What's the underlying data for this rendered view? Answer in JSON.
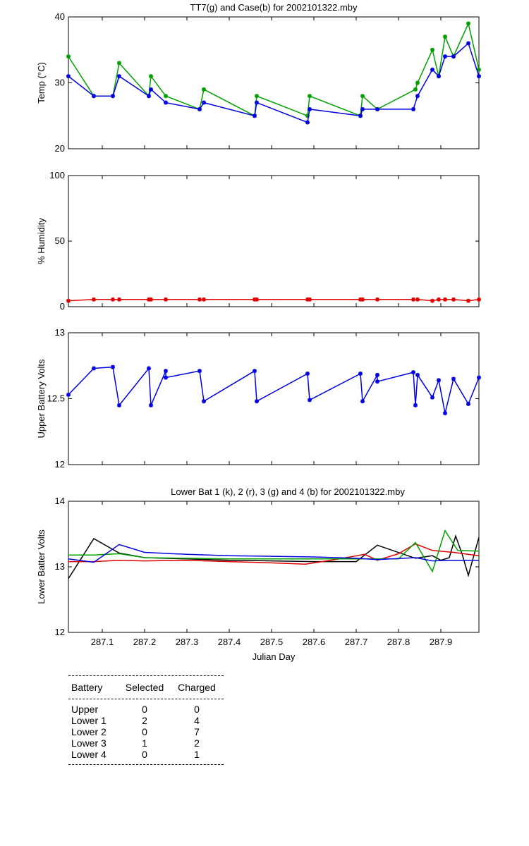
{
  "chart_data": [
    {
      "type": "line",
      "title": "TT7(g) and Case(b) for 2002101322.mby",
      "xlabel": "",
      "ylabel": "Temp  (°C)",
      "xlim": [
        287.02,
        287.99
      ],
      "ylim": [
        20,
        40
      ],
      "yticks": [
        "20",
        "30",
        "40"
      ],
      "series": [
        {
          "name": "TT7",
          "color": "#00a000",
          "x": [
            287.02,
            287.08,
            287.125,
            287.14,
            287.21,
            287.215,
            287.25,
            287.33,
            287.34,
            287.46,
            287.465,
            287.585,
            287.59,
            287.71,
            287.715,
            287.75,
            287.84,
            287.845,
            287.88,
            287.895,
            287.91,
            287.93,
            287.965,
            287.99
          ],
          "y": [
            34,
            28,
            28,
            33,
            28,
            31,
            28,
            26,
            29,
            25,
            28,
            25,
            28,
            25,
            28,
            26,
            29,
            30,
            35,
            31,
            37,
            34,
            39,
            32
          ]
        },
        {
          "name": "Case",
          "color": "#0000e0",
          "x": [
            287.02,
            287.08,
            287.125,
            287.14,
            287.21,
            287.215,
            287.25,
            287.33,
            287.34,
            287.46,
            287.465,
            287.585,
            287.59,
            287.71,
            287.715,
            287.75,
            287.835,
            287.845,
            287.88,
            287.895,
            287.91,
            287.93,
            287.965,
            287.99
          ],
          "y": [
            31,
            28,
            28,
            31,
            28,
            29,
            27,
            26,
            27,
            25,
            27,
            24,
            26,
            25,
            26,
            26,
            26,
            28,
            32,
            31,
            34,
            34,
            36,
            31
          ]
        }
      ]
    },
    {
      "type": "line",
      "title": "",
      "xlabel": "",
      "ylabel": "% Humidity",
      "xlim": [
        287.02,
        287.99
      ],
      "ylim": [
        0,
        100
      ],
      "yticks": [
        "0",
        "50",
        "100"
      ],
      "series": [
        {
          "name": "Humidity",
          "color": "#e00000",
          "x": [
            287.02,
            287.08,
            287.125,
            287.14,
            287.21,
            287.215,
            287.25,
            287.33,
            287.34,
            287.46,
            287.465,
            287.585,
            287.59,
            287.71,
            287.715,
            287.75,
            287.835,
            287.845,
            287.88,
            287.895,
            287.91,
            287.93,
            287.965,
            287.99
          ],
          "y": [
            4.5,
            5.5,
            5.5,
            5.5,
            5.5,
            5.5,
            5.5,
            5.5,
            5.5,
            5.5,
            5.5,
            5.5,
            5.5,
            5.5,
            5.5,
            5.5,
            5.5,
            5.5,
            4.5,
            5.5,
            5.5,
            5.5,
            4.5,
            5.5
          ]
        }
      ]
    },
    {
      "type": "line",
      "title": "",
      "xlabel": "",
      "ylabel": "Upper Battery Volts",
      "xlim": [
        287.02,
        287.99
      ],
      "ylim": [
        12,
        13
      ],
      "yticks": [
        "12",
        "12.5",
        "13"
      ],
      "series": [
        {
          "name": "Upper Battery",
          "color": "#0000e0",
          "x": [
            287.02,
            287.08,
            287.125,
            287.14,
            287.21,
            287.215,
            287.25,
            287.25,
            287.33,
            287.34,
            287.46,
            287.465,
            287.585,
            287.59,
            287.71,
            287.715,
            287.75,
            287.75,
            287.835,
            287.84,
            287.845,
            287.88,
            287.895,
            287.91,
            287.93,
            287.965,
            287.99
          ],
          "y": [
            12.53,
            12.73,
            12.74,
            12.45,
            12.73,
            12.45,
            12.71,
            12.66,
            12.71,
            12.48,
            12.71,
            12.48,
            12.69,
            12.49,
            12.69,
            12.48,
            12.68,
            12.63,
            12.7,
            12.45,
            12.68,
            12.51,
            12.64,
            12.39,
            12.65,
            12.46,
            12.66
          ]
        }
      ]
    },
    {
      "type": "line",
      "title": "Lower Bat 1 (k), 2 (r), 3 (g) and 4 (b) for 2002101322.mby",
      "xlabel": "Julian Day",
      "ylabel": "Lower Batter Volts",
      "xlim": [
        287.02,
        287.99
      ],
      "ylim": [
        12,
        14
      ],
      "yticks": [
        "12",
        "13",
        "14"
      ],
      "xticks": [
        "287.1",
        "287.2",
        "287.3",
        "287.4",
        "287.5",
        "287.6",
        "287.7",
        "287.8",
        "287.9"
      ],
      "series": [
        {
          "name": "Lower 1 (k)",
          "color": "#000000",
          "x": [
            287.02,
            287.08,
            287.14,
            287.2,
            287.3,
            287.4,
            287.5,
            287.6,
            287.7,
            287.75,
            287.84,
            287.88,
            287.9,
            287.92,
            287.935,
            287.95,
            287.965,
            287.99
          ],
          "y": [
            12.82,
            13.43,
            13.21,
            13.14,
            13.12,
            13.1,
            13.09,
            13.08,
            13.08,
            13.33,
            13.13,
            13.17,
            13.1,
            13.14,
            13.47,
            13.2,
            12.87,
            13.45
          ]
        },
        {
          "name": "Lower 2 (r)",
          "color": "#e00000",
          "x": [
            287.02,
            287.08,
            287.14,
            287.2,
            287.3,
            287.4,
            287.5,
            287.58,
            287.65,
            287.72,
            287.75,
            287.8,
            287.84,
            287.88,
            287.93,
            287.99
          ],
          "y": [
            13.08,
            13.08,
            13.1,
            13.09,
            13.1,
            13.08,
            13.06,
            13.04,
            13.11,
            13.19,
            13.1,
            13.2,
            13.35,
            13.25,
            13.22,
            13.17
          ]
        },
        {
          "name": "Lower 3 (g)",
          "color": "#00a000",
          "x": [
            287.02,
            287.08,
            287.14,
            287.2,
            287.3,
            287.4,
            287.5,
            287.6,
            287.7,
            287.8,
            287.84,
            287.88,
            287.91,
            287.94,
            287.99
          ],
          "y": [
            13.18,
            13.18,
            13.2,
            13.14,
            13.13,
            13.12,
            13.12,
            13.12,
            13.12,
            13.12,
            13.37,
            12.93,
            13.55,
            13.25,
            13.24
          ]
        },
        {
          "name": "Lower 4 (b)",
          "color": "#0000e0",
          "x": [
            287.02,
            287.08,
            287.14,
            287.2,
            287.3,
            287.4,
            287.5,
            287.6,
            287.7,
            287.75,
            287.84,
            287.88,
            287.92,
            287.99
          ],
          "y": [
            13.12,
            13.07,
            13.34,
            13.22,
            13.19,
            13.17,
            13.16,
            13.15,
            13.13,
            13.11,
            13.14,
            13.09,
            13.1,
            13.1
          ]
        }
      ]
    }
  ],
  "legend_table": {
    "headers": [
      "Battery",
      "Selected",
      "Charged"
    ],
    "rows": [
      [
        "Upper",
        "0",
        "0"
      ],
      [
        "Lower 1",
        "2",
        "4"
      ],
      [
        "Lower 2",
        "0",
        "7"
      ],
      [
        "Lower 3",
        "1",
        "2"
      ],
      [
        "Lower 4",
        "0",
        "1"
      ]
    ]
  }
}
